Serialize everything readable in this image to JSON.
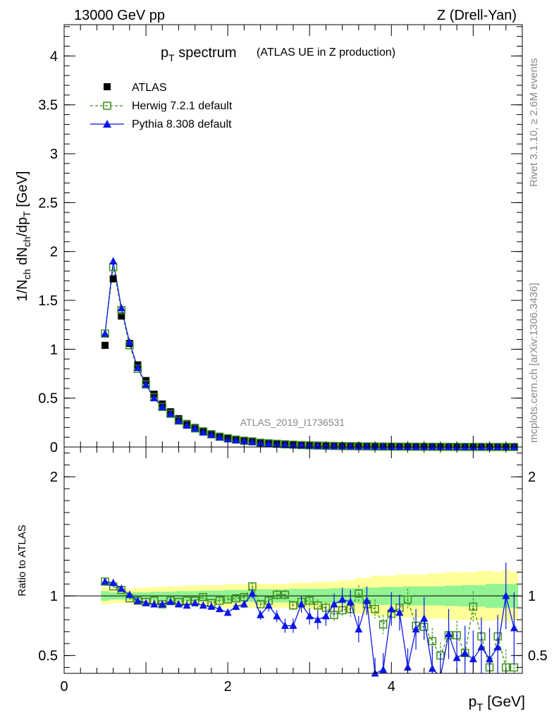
{
  "header": {
    "energy": "13000 GeV pp",
    "process": "Z (Drell-Yan)"
  },
  "side_labels": {
    "rivet": "Rivet 3.1.10, ≥ 2.6M events",
    "mcplots": "mcplots.cern.ch [arXiv:1306.3436]"
  },
  "chart_data": [
    {
      "type": "scatter",
      "panel": "main",
      "title_main": "p",
      "title_sub": "T",
      "title_rest": " spectrum",
      "title_note": "(ATLAS UE in Z production)",
      "analysis_label": "ATLAS_2019_I1736531",
      "ylabel": "1/N_ch dN_ch/dp_T [GeV]",
      "xlim": [
        0,
        5.6
      ],
      "ylim": [
        0,
        4.32
      ],
      "yticks": [
        0,
        0.5,
        1,
        1.5,
        2,
        2.5,
        3,
        3.5,
        4
      ],
      "ytick_labels": [
        "0",
        "0.5",
        "1",
        "1.5",
        "2",
        "2.5",
        "3",
        "3.5",
        "4"
      ],
      "x": [
        0.5,
        0.6,
        0.7,
        0.8,
        0.9,
        1.0,
        1.1,
        1.2,
        1.3,
        1.4,
        1.5,
        1.6,
        1.7,
        1.8,
        1.9,
        2.0,
        2.1,
        2.2,
        2.3,
        2.4,
        2.5,
        2.6,
        2.7,
        2.8,
        2.9,
        3.0,
        3.1,
        3.2,
        3.3,
        3.4,
        3.5,
        3.6,
        3.7,
        3.8,
        3.9,
        4.0,
        4.1,
        4.2,
        4.3,
        4.4,
        4.5,
        4.6,
        4.7,
        4.8,
        4.9,
        5.0,
        5.1,
        5.2,
        5.3,
        5.4,
        5.5
      ],
      "series": [
        {
          "name": "ATLAS",
          "style": "black-square",
          "values": [
            1.04,
            1.72,
            1.34,
            1.06,
            0.84,
            0.68,
            0.54,
            0.44,
            0.36,
            0.29,
            0.24,
            0.2,
            0.165,
            0.135,
            0.11,
            0.093,
            0.078,
            0.066,
            0.056,
            0.047,
            0.04,
            0.034,
            0.029,
            0.025,
            0.021,
            0.018,
            0.016,
            0.014,
            0.012,
            0.01,
            0.009,
            0.008,
            0.007,
            0.006,
            0.0055,
            0.005,
            0.0045,
            0.004,
            0.0036,
            0.0032,
            0.0029,
            0.0026,
            0.0023,
            0.0021,
            0.0019,
            0.0017,
            0.0015,
            0.0014,
            0.0012,
            0.0011,
            0.001
          ]
        },
        {
          "name": "Herwig 7.2.1 default",
          "style": "green-open-square-dashed",
          "values": [
            1.16,
            1.84,
            1.4,
            1.04,
            0.8,
            0.64,
            0.51,
            0.41,
            0.34,
            0.27,
            0.23,
            0.19,
            0.16,
            0.13,
            0.105,
            0.09,
            0.076,
            0.065,
            0.058,
            0.044,
            0.038,
            0.033,
            0.028,
            0.024,
            0.02,
            0.017,
            0.015,
            0.013,
            0.011,
            0.0095,
            0.0085,
            0.008,
            0.0065,
            0.0055,
            0.005,
            0.0045,
            0.004,
            0.0038,
            0.003,
            0.0027,
            0.0023,
            0.002,
            0.0018,
            0.0015,
            0.0013,
            0.0012,
            0.001,
            0.0009,
            0.0008,
            0.0007,
            0.0006
          ]
        },
        {
          "name": "Pythia 8.308 default",
          "style": "blue-triangle-solid",
          "values": [
            1.16,
            1.9,
            1.42,
            1.07,
            0.81,
            0.64,
            0.5,
            0.41,
            0.34,
            0.27,
            0.22,
            0.19,
            0.15,
            0.125,
            0.1,
            0.08,
            0.07,
            0.06,
            0.052,
            0.04,
            0.034,
            0.028,
            0.024,
            0.02,
            0.018,
            0.015,
            0.013,
            0.012,
            0.01,
            0.0085,
            0.0075,
            0.007,
            0.0065,
            0.005,
            0.0045,
            0.004,
            0.0036,
            0.003,
            0.0027,
            0.0024,
            0.002,
            0.0018,
            0.0015,
            0.0013,
            0.0011,
            0.0009,
            0.0008,
            0.0007,
            0.0006,
            0.0006,
            0.0005
          ]
        }
      ]
    },
    {
      "type": "scatter",
      "panel": "ratio",
      "xlabel_main": "p",
      "xlabel_sub": "T",
      "xlabel_rest": " [GeV]",
      "ylabel": "Ratio to ATLAS",
      "xlim": [
        0,
        5.6
      ],
      "ylim": [
        0.35,
        2.25
      ],
      "xticks": [
        0,
        2,
        4
      ],
      "xtick_labels": [
        "0",
        "2",
        "4"
      ],
      "yticks": [
        0.5,
        1,
        2
      ],
      "ytick_labels": [
        "0.5",
        "1",
        "2"
      ],
      "x": [
        0.5,
        0.6,
        0.7,
        0.8,
        0.9,
        1.0,
        1.1,
        1.2,
        1.3,
        1.4,
        1.5,
        1.6,
        1.7,
        1.8,
        1.9,
        2.0,
        2.1,
        2.2,
        2.3,
        2.4,
        2.5,
        2.6,
        2.7,
        2.8,
        2.9,
        3.0,
        3.1,
        3.2,
        3.3,
        3.4,
        3.5,
        3.6,
        3.7,
        3.8,
        3.9,
        4.0,
        4.1,
        4.2,
        4.3,
        4.4,
        4.5,
        4.6,
        4.7,
        4.8,
        4.9,
        5.0,
        5.1,
        5.2,
        5.3,
        5.4,
        5.5
      ],
      "band_inner_halfwidth": [
        0.04,
        0.03,
        0.03,
        0.03,
        0.03,
        0.03,
        0.035,
        0.035,
        0.035,
        0.04,
        0.04,
        0.04,
        0.045,
        0.045,
        0.045,
        0.05,
        0.05,
        0.05,
        0.05,
        0.055,
        0.055,
        0.055,
        0.055,
        0.06,
        0.06,
        0.06,
        0.06,
        0.06,
        0.065,
        0.065,
        0.065,
        0.065,
        0.07,
        0.07,
        0.075,
        0.075,
        0.075,
        0.08,
        0.08,
        0.08,
        0.08,
        0.08,
        0.085,
        0.085,
        0.09,
        0.09,
        0.09,
        0.1,
        0.1,
        0.1,
        0.1
      ],
      "band_outer_halfwidth": [
        0.07,
        0.06,
        0.06,
        0.06,
        0.07,
        0.07,
        0.075,
        0.08,
        0.08,
        0.08,
        0.085,
        0.085,
        0.09,
        0.09,
        0.09,
        0.1,
        0.1,
        0.1,
        0.1,
        0.1,
        0.1,
        0.1,
        0.1,
        0.11,
        0.11,
        0.11,
        0.12,
        0.12,
        0.12,
        0.13,
        0.13,
        0.15,
        0.15,
        0.17,
        0.17,
        0.17,
        0.18,
        0.18,
        0.18,
        0.18,
        0.19,
        0.19,
        0.2,
        0.2,
        0.2,
        0.2,
        0.21,
        0.21,
        0.2,
        0.22,
        0.2
      ],
      "series": [
        {
          "name": "Herwig 7.2.1 default",
          "values": [
            1.12,
            1.08,
            1.05,
            0.98,
            0.96,
            0.95,
            0.96,
            0.93,
            0.96,
            0.95,
            0.96,
            0.96,
            0.99,
            0.94,
            0.96,
            0.97,
            0.98,
            0.99,
            1.08,
            0.93,
            0.96,
            1.01,
            1.01,
            0.92,
            0.95,
            0.96,
            0.92,
            0.9,
            0.84,
            0.88,
            0.89,
            1.02,
            0.93,
            0.89,
            0.76,
            0.85,
            0.9,
            0.97,
            0.75,
            0.74,
            0.62,
            0.5,
            0.67,
            0.67,
            0.52,
            0.91,
            0.66,
            0.4,
            0.66,
            0.4,
            0.4
          ],
          "errors": [
            0.01,
            0.01,
            0.01,
            0.01,
            0.01,
            0.01,
            0.01,
            0.01,
            0.01,
            0.01,
            0.01,
            0.01,
            0.02,
            0.02,
            0.02,
            0.02,
            0.02,
            0.03,
            0.03,
            0.03,
            0.03,
            0.04,
            0.04,
            0.04,
            0.05,
            0.05,
            0.05,
            0.05,
            0.06,
            0.06,
            0.07,
            0.07,
            0.07,
            0.08,
            0.08,
            0.08,
            0.09,
            0.09,
            0.1,
            0.1,
            0.11,
            0.11,
            0.12,
            0.12,
            0.13,
            0.13,
            0.14,
            0.14,
            0.15,
            0.15,
            0.15
          ]
        },
        {
          "name": "Pythia 8.308 default",
          "values": [
            1.12,
            1.11,
            1.06,
            1.01,
            0.96,
            0.94,
            0.93,
            0.93,
            0.95,
            0.93,
            0.92,
            0.94,
            0.92,
            0.91,
            0.89,
            0.86,
            0.91,
            0.93,
            1.02,
            0.84,
            0.92,
            0.83,
            0.75,
            0.75,
            0.93,
            0.83,
            0.8,
            0.83,
            0.93,
            0.97,
            0.95,
            0.72,
            0.96,
            0.35,
            0.38,
            0.89,
            0.86,
            0.4,
            0.72,
            0.81,
            0.39,
            0.32,
            0.68,
            0.48,
            0.52,
            0.47,
            0.57,
            0.47,
            0.57,
            1.0,
            0.73
          ],
          "errors": [
            0.01,
            0.01,
            0.01,
            0.01,
            0.01,
            0.01,
            0.01,
            0.01,
            0.01,
            0.01,
            0.01,
            0.02,
            0.02,
            0.02,
            0.02,
            0.03,
            0.03,
            0.03,
            0.04,
            0.04,
            0.05,
            0.05,
            0.06,
            0.06,
            0.07,
            0.07,
            0.08,
            0.08,
            0.09,
            0.1,
            0.1,
            0.11,
            0.12,
            0.13,
            0.14,
            0.14,
            0.15,
            0.16,
            0.17,
            0.18,
            0.19,
            0.2,
            0.21,
            0.22,
            0.23,
            0.24,
            0.25,
            0.26,
            0.27,
            0.28,
            0.3
          ]
        }
      ]
    }
  ],
  "colors": {
    "atlas": "#000000",
    "herwig": "#3a8f1c",
    "pythia": "#0a16e6",
    "band_inner": "#92f392",
    "band_outer": "#ffff99"
  }
}
